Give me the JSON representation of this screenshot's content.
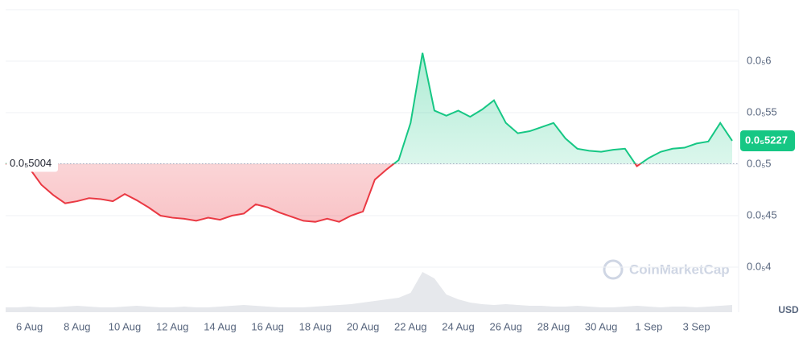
{
  "chart_data": {
    "type": "line",
    "categories": [
      null,
      null,
      "6 Aug",
      null,
      null,
      null,
      "8 Aug",
      null,
      null,
      null,
      "10 Aug",
      null,
      null,
      null,
      "12 Aug",
      null,
      null,
      null,
      "14 Aug",
      null,
      null,
      null,
      "16 Aug",
      null,
      null,
      null,
      "18 Aug",
      null,
      null,
      null,
      "20 Aug",
      null,
      null,
      null,
      "22 Aug",
      null,
      null,
      null,
      "24 Aug",
      null,
      null,
      null,
      "26 Aug",
      null,
      null,
      null,
      "28 Aug",
      null,
      null,
      null,
      "30 Aug",
      null,
      null,
      null,
      "1 Sep",
      null,
      null,
      null,
      "3 Sep",
      null,
      null,
      null
    ],
    "values": [
      5.004e-06,
      5e-06,
      4.96e-06,
      4.8e-06,
      4.7e-06,
      4.62e-06,
      4.64e-06,
      4.67e-06,
      4.66e-06,
      4.64e-06,
      4.71e-06,
      4.65e-06,
      4.58e-06,
      4.5e-06,
      4.48e-06,
      4.47e-06,
      4.45e-06,
      4.48e-06,
      4.46e-06,
      4.5e-06,
      4.52e-06,
      4.61e-06,
      4.58e-06,
      4.53e-06,
      4.49e-06,
      4.45e-06,
      4.44e-06,
      4.47e-06,
      4.44e-06,
      4.5e-06,
      4.54e-06,
      4.85e-06,
      4.95e-06,
      5.04e-06,
      5.4e-06,
      6.08e-06,
      5.52e-06,
      5.47e-06,
      5.52e-06,
      5.46e-06,
      5.53e-06,
      5.62e-06,
      5.4e-06,
      5.3e-06,
      5.32e-06,
      5.36e-06,
      5.4e-06,
      5.25e-06,
      5.15e-06,
      5.13e-06,
      5.12e-06,
      5.14e-06,
      5.15e-06,
      4.98e-06,
      5.06e-06,
      5.12e-06,
      5.15e-06,
      5.16e-06,
      5.2e-06,
      5.22e-06,
      5.4e-06,
      5.227e-06
    ],
    "volume": [
      6,
      6,
      7,
      6,
      6,
      7,
      8,
      7,
      6,
      6,
      7,
      8,
      7,
      6,
      6,
      7,
      6,
      6,
      7,
      8,
      9,
      8,
      7,
      6,
      6,
      6,
      7,
      8,
      9,
      10,
      12,
      14,
      16,
      18,
      24,
      50,
      42,
      22,
      16,
      12,
      10,
      9,
      10,
      9,
      8,
      8,
      7,
      7,
      8,
      7,
      6,
      6,
      7,
      8,
      7,
      6,
      7,
      7,
      6,
      7,
      8,
      9
    ],
    "colors": {
      "up": "#16c784",
      "down": "#ea3943",
      "volume": "#e6e8ec"
    },
    "ylim": [
      3.5625e-06,
      6.5e-06
    ],
    "yticks": [
      {
        "value": 4e-06,
        "label": "0.0₅4"
      },
      {
        "value": 4.5e-06,
        "label": "0.0₅45"
      },
      {
        "value": 5e-06,
        "label": "0.0₅5"
      },
      {
        "value": 5.5e-06,
        "label": "0.0₅55"
      },
      {
        "value": 6e-06,
        "label": "0.0₅6"
      }
    ],
    "grid": true,
    "baseline": {
      "value": 5.004e-06,
      "label": "0.0₅5004"
    },
    "last_price": {
      "value": 5.227e-06,
      "label": "0.0₅5227"
    },
    "currency": "USD",
    "watermark": "CoinMarketCap"
  }
}
